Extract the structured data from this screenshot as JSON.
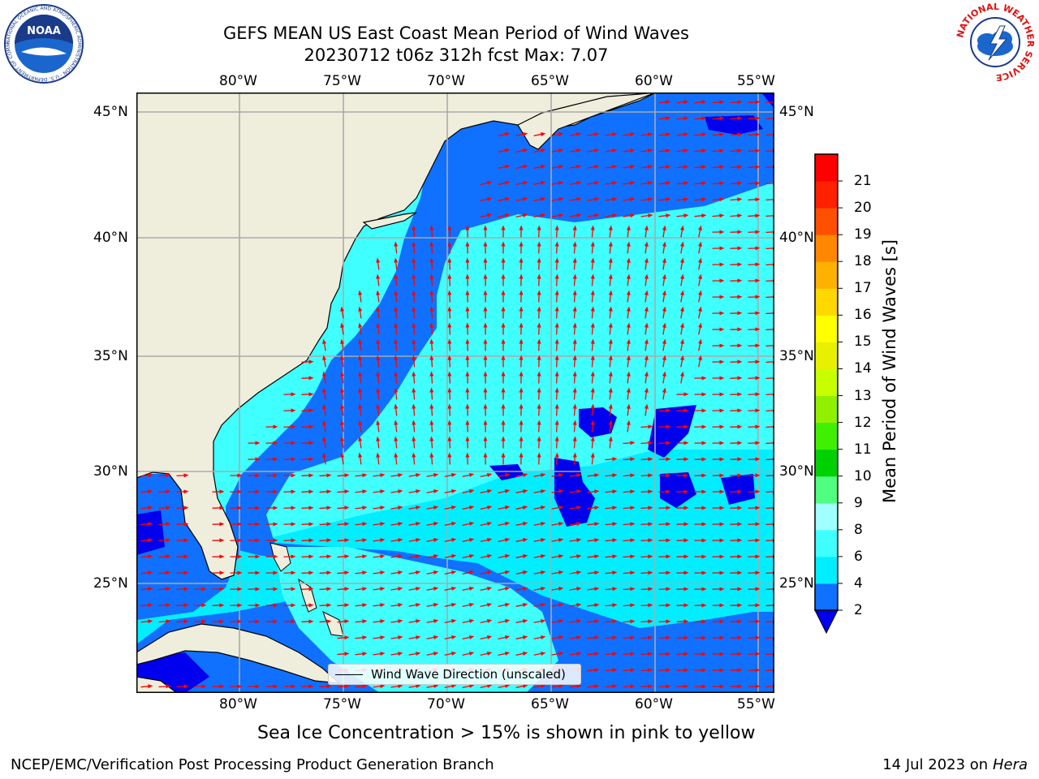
{
  "title": {
    "line1": "GEFS MEAN US East Coast Mean Period of Wind Waves",
    "line2": "20230712 t06z 312h fcst   Max: 7.07"
  },
  "axes": {
    "lon_labels": [
      "80°W",
      "75°W",
      "70°W",
      "65°W",
      "60°W",
      "55°W"
    ],
    "lat_labels": [
      "45°N",
      "40°N",
      "35°N",
      "30°N",
      "25°N"
    ]
  },
  "legend": {
    "label": "Wind Wave Direction (unscaled)"
  },
  "colorbar": {
    "label": "Mean Period of Wind Waves [s]",
    "ticks": [
      "2",
      "4",
      "6",
      "8",
      "9",
      "10",
      "11",
      "12",
      "13",
      "14",
      "15",
      "16",
      "17",
      "18",
      "19",
      "20",
      "21"
    ],
    "colors": [
      "#1070ff",
      "#00eeff",
      "#40ffff",
      "#a0ffff",
      "#50ff80",
      "#00d000",
      "#40f000",
      "#90f000",
      "#c8ff00",
      "#e8f000",
      "#ffff00",
      "#ffd800",
      "#ffb000",
      "#ff8800",
      "#ff5000",
      "#ff2000",
      "#ff0000"
    ],
    "under_color": "#0000ee"
  },
  "caption": "Sea Ice Concentration > 15% is shown in pink to yellow",
  "footer": {
    "left": "NCEP/EMC/Verification Post Processing Product Generation Branch",
    "right_date": "14 Jul 2023 on ",
    "right_machine": "Hera"
  },
  "logos": {
    "noaa_text": "NOAA",
    "noaa_ring": "NATIONAL OCEANIC AND ATMOSPHERIC ADMINISTRATION · U.S. DEPARTMENT OF COMMERCE",
    "nws_ring": "NATIONAL WEATHER SERVICE"
  },
  "map_colors": {
    "land": "#efeedd",
    "ocean_blue": "#1070ff",
    "ocean_cyan": "#00eeff",
    "ocean_light": "#40ffff",
    "ocean_deep": "#0000ee",
    "arrow": "#ff0000"
  }
}
